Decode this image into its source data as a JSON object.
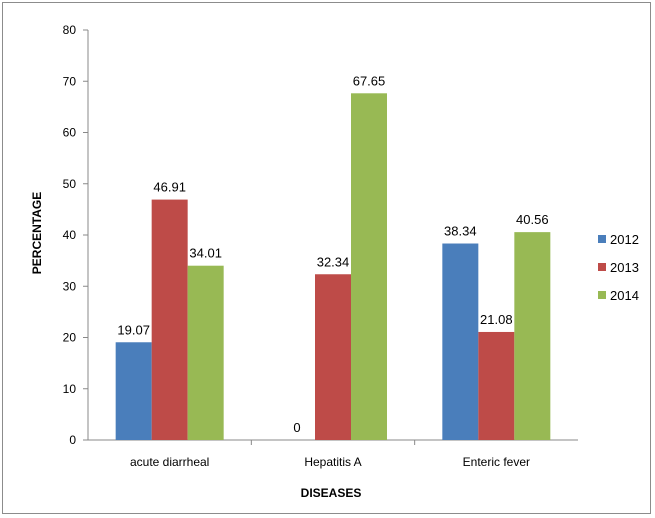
{
  "chart_data": {
    "type": "bar",
    "categories": [
      "acute diarrheal",
      "Hepatitis A",
      "Enteric fever"
    ],
    "series": [
      {
        "name": "2012",
        "values": [
          19.07,
          0,
          38.34
        ],
        "color": "#4a7ebb"
      },
      {
        "name": "2013",
        "values": [
          46.91,
          32.34,
          21.08
        ],
        "color": "#be4b48"
      },
      {
        "name": "2014",
        "values": [
          34.01,
          67.65,
          40.56
        ],
        "color": "#98b954"
      }
    ],
    "data_labels": [
      [
        "19.07",
        "0",
        "38.34"
      ],
      [
        "46.91",
        "32.34",
        "21.08"
      ],
      [
        "34.01",
        "67.65",
        "40.56"
      ]
    ],
    "xlabel": "DISEASES",
    "ylabel": "PERCENTAGE",
    "ylim": [
      0,
      80
    ],
    "yticks": [
      "0",
      "10",
      "20",
      "30",
      "40",
      "50",
      "60",
      "70",
      "80"
    ],
    "grid": false,
    "legend_position": "right"
  }
}
